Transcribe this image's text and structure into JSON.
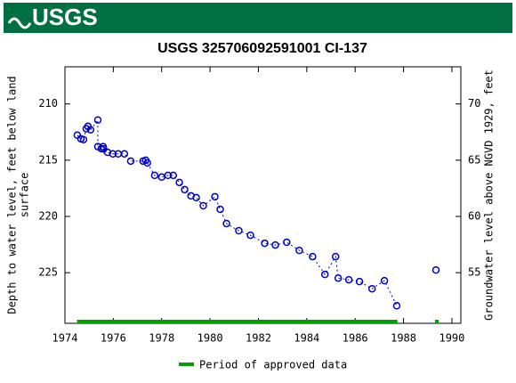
{
  "header": {
    "logo": "USGS"
  },
  "chart_data": {
    "type": "line",
    "title": "USGS 325706092591001 CI-137",
    "ylabel": [
      "Depth to water level, feet below land",
      "surface"
    ],
    "y2label": "Groundwater level above NGVD 1929, feet",
    "xlim": [
      1974,
      1990.37
    ],
    "xticks": [
      1974,
      1976,
      1978,
      1980,
      1982,
      1984,
      1986,
      1988,
      1990
    ],
    "ylim": [
      206.7,
      229.5
    ],
    "yticks": [
      210,
      215,
      220,
      225
    ],
    "y2lim": [
      73.3,
      50.5
    ],
    "y2ticks": [
      70,
      65,
      60,
      55
    ],
    "inverted_y": true,
    "series": [
      {
        "name": "Depth to water level",
        "color": "#0000cc",
        "x": [
          1974.51,
          1974.66,
          1974.77,
          1974.88,
          1974.95,
          1975.06,
          1975.36,
          1975.36,
          1975.5,
          1975.58,
          1975.6,
          1975.76,
          1975.98,
          1976.2,
          1976.46,
          1976.72,
          1977.23,
          1977.34,
          1977.41,
          1977.71,
          1978.0,
          1978.26,
          1978.48,
          1978.73,
          1978.95,
          1979.21,
          1979.43,
          1979.72,
          1980.2,
          1980.42,
          1980.68,
          1981.19,
          1981.67,
          1982.26,
          1982.7,
          1983.17,
          1983.69,
          1984.24,
          1984.75,
          1985.19,
          1985.3,
          1985.74,
          1986.18,
          1986.7,
          1987.21,
          1987.72,
          1988.5,
          1989.34
        ],
        "values": [
          212.78,
          213.1,
          213.17,
          212.2,
          211.98,
          212.3,
          211.43,
          213.8,
          213.97,
          213.8,
          214.0,
          214.3,
          214.44,
          214.44,
          214.44,
          215.08,
          215.08,
          215.0,
          215.24,
          216.35,
          216.5,
          216.35,
          216.35,
          216.98,
          217.62,
          218.17,
          218.33,
          219.05,
          218.25,
          219.37,
          220.63,
          221.27,
          221.67,
          222.38,
          222.54,
          222.3,
          223.02,
          223.57,
          225.16,
          223.57,
          225.48,
          225.63,
          225.79,
          226.43,
          225.71,
          227.94,
          null,
          224.76
        ]
      }
    ],
    "approved_periods": {
      "name": "Period of approved data",
      "color": "#00a000",
      "periods": [
        [
          1974.5,
          1987.75
        ],
        [
          1989.3,
          1989.45
        ]
      ]
    }
  }
}
